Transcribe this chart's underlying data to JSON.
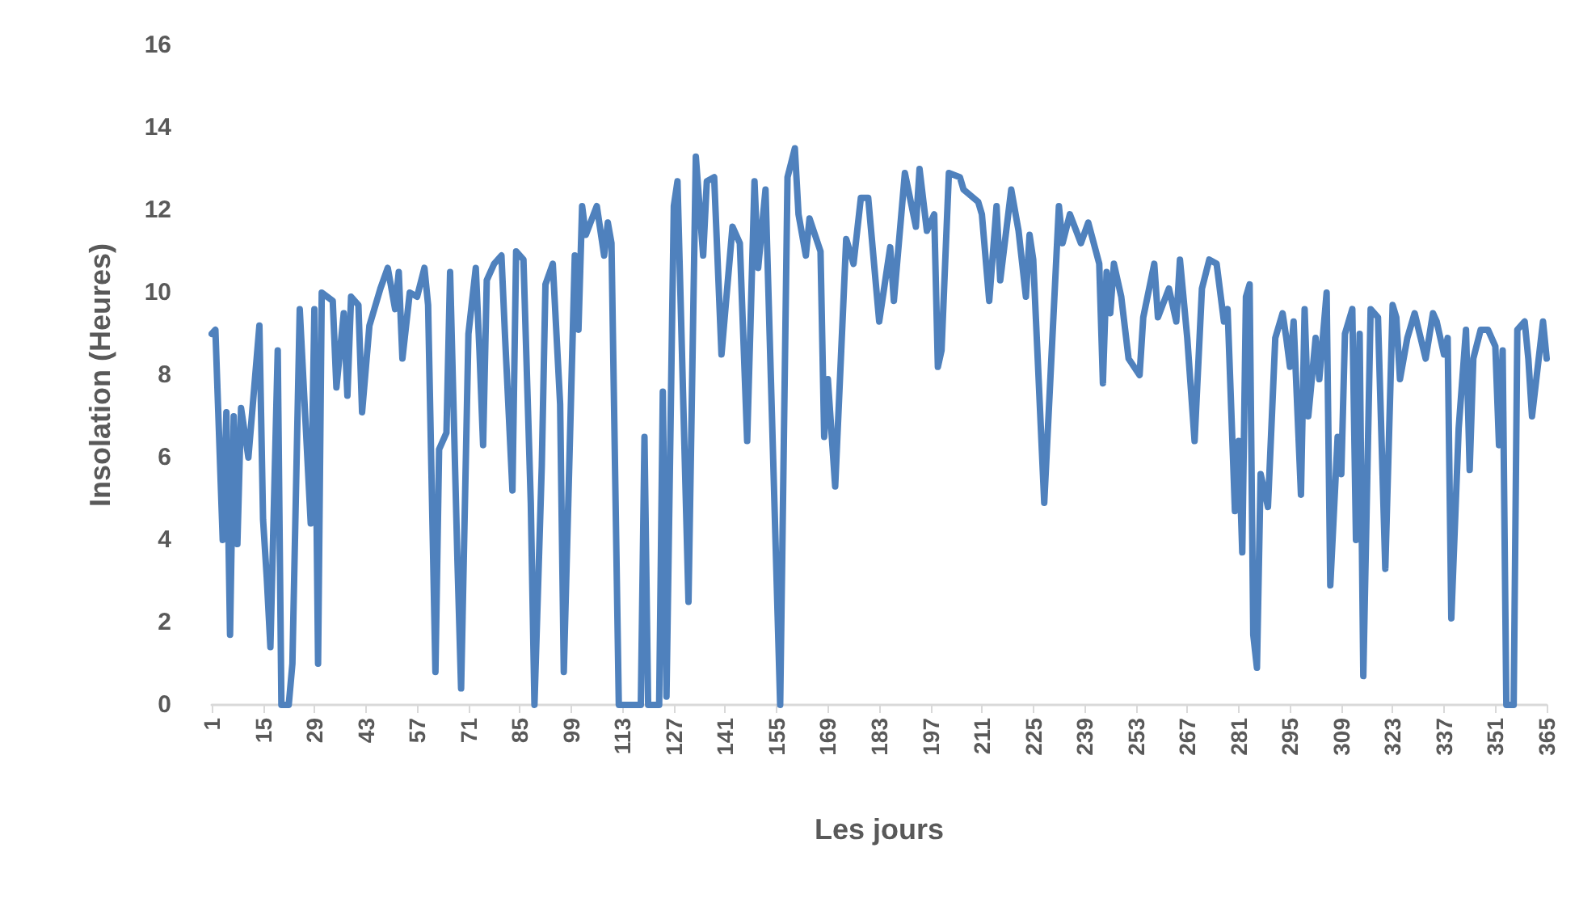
{
  "chart_data": {
    "type": "line",
    "xlabel": "Les jours",
    "ylabel": "Insolation (Heures)",
    "xlim": [
      1,
      365
    ],
    "xticks": [
      1,
      15,
      29,
      43,
      57,
      71,
      85,
      99,
      113,
      127,
      141,
      155,
      169,
      183,
      197,
      211,
      225,
      239,
      253,
      267,
      281,
      295,
      309,
      323,
      337,
      351,
      365
    ],
    "ylim": [
      0,
      16
    ],
    "yticks": [
      0,
      2,
      4,
      6,
      8,
      10,
      12,
      14,
      16
    ],
    "grid": false,
    "marker": "none",
    "series": [
      {
        "color": "#4f81bd",
        "x": [
          1,
          2,
          4,
          5,
          6,
          7,
          8,
          9,
          11,
          14,
          15,
          16,
          17,
          19,
          20,
          22,
          23,
          25,
          28,
          29,
          30,
          31,
          34,
          35,
          37,
          38,
          39,
          41,
          42,
          44,
          47,
          49,
          51,
          52,
          53,
          55,
          57,
          59,
          60,
          62,
          63,
          65,
          66,
          68,
          69,
          71,
          73,
          74,
          75,
          76,
          78,
          80,
          81,
          83,
          84,
          86,
          88,
          89,
          91,
          92,
          94,
          96,
          97,
          100,
          101,
          102,
          103,
          106,
          108,
          109,
          110,
          112,
          118,
          119,
          120,
          123,
          124,
          125,
          127,
          128,
          131,
          133,
          135,
          136,
          138,
          140,
          143,
          145,
          147,
          149,
          150,
          152,
          156,
          158,
          160,
          161,
          163,
          164,
          167,
          168,
          169,
          171,
          174,
          176,
          178,
          180,
          183,
          186,
          187,
          190,
          193,
          194,
          196,
          198,
          199,
          200,
          202,
          205,
          206,
          210,
          211,
          213,
          215,
          216,
          219,
          221,
          223,
          224,
          225,
          228,
          232,
          233,
          235,
          238,
          240,
          243,
          244,
          245,
          246,
          247,
          249,
          251,
          254,
          255,
          258,
          259,
          262,
          264,
          265,
          267,
          269,
          271,
          273,
          275,
          277,
          278,
          280,
          281,
          282,
          283,
          284,
          285,
          286,
          287,
          289,
          291,
          293,
          294,
          295,
          296,
          298,
          299,
          300,
          302,
          303,
          305,
          306,
          308,
          309,
          310,
          312,
          313,
          314,
          315,
          317,
          319,
          321,
          323,
          324,
          325,
          327,
          329,
          332,
          334,
          335,
          337,
          338,
          339,
          341,
          343,
          344,
          345,
          347,
          349,
          351,
          352,
          353,
          354,
          356,
          357,
          359,
          360,
          361,
          364,
          365
        ],
        "values": [
          9.0,
          9.1,
          4.0,
          7.1,
          1.7,
          7.0,
          3.9,
          7.2,
          6.0,
          9.2,
          4.5,
          3.1,
          1.4,
          8.6,
          0,
          0,
          1.0,
          9.6,
          4.4,
          9.6,
          1.0,
          10.0,
          9.8,
          7.7,
          9.5,
          7.5,
          9.9,
          9.7,
          7.1,
          9.2,
          10.1,
          10.6,
          9.6,
          10.5,
          8.4,
          10.0,
          9.9,
          10.6,
          9.7,
          0.8,
          6.2,
          6.6,
          10.5,
          3.5,
          0.4,
          9.0,
          10.6,
          8.6,
          6.3,
          10.3,
          10.7,
          10.9,
          8.9,
          5.2,
          11.0,
          10.8,
          4.9,
          0,
          5.8,
          10.2,
          10.7,
          7.3,
          0.8,
          10.9,
          9.1,
          12.1,
          11.4,
          12.1,
          10.9,
          11.7,
          11.2,
          0,
          0,
          6.5,
          0,
          0,
          7.6,
          0.2,
          12.1,
          12.7,
          2.5,
          13.3,
          10.9,
          12.7,
          12.8,
          8.5,
          11.6,
          11.2,
          6.4,
          12.7,
          10.6,
          12.5,
          0,
          12.8,
          13.5,
          11.9,
          10.9,
          11.8,
          11.0,
          6.5,
          7.9,
          5.3,
          11.3,
          10.7,
          12.3,
          12.3,
          9.3,
          11.1,
          9.8,
          12.9,
          11.6,
          13.0,
          11.5,
          11.9,
          8.2,
          8.6,
          12.9,
          12.8,
          12.5,
          12.2,
          11.9,
          9.8,
          12.1,
          10.3,
          12.5,
          11.5,
          9.9,
          11.4,
          10.8,
          4.9,
          12.1,
          11.2,
          11.9,
          11.2,
          11.7,
          10.7,
          7.8,
          10.5,
          9.5,
          10.7,
          9.9,
          8.4,
          8.0,
          9.4,
          10.7,
          9.4,
          10.1,
          9.3,
          10.8,
          8.9,
          6.4,
          10.1,
          10.8,
          10.7,
          9.3,
          9.6,
          4.7,
          6.4,
          3.7,
          9.9,
          10.2,
          1.7,
          0.9,
          5.6,
          4.8,
          8.9,
          9.5,
          8.9,
          8.2,
          9.3,
          5.1,
          9.6,
          7.0,
          8.9,
          7.9,
          10.0,
          2.9,
          6.5,
          5.6,
          9.0,
          9.6,
          4.0,
          9.0,
          0.7,
          9.6,
          9.4,
          3.3,
          9.7,
          9.4,
          7.9,
          8.9,
          9.5,
          8.4,
          9.5,
          9.3,
          8.5,
          8.9,
          2.1,
          6.7,
          9.1,
          5.7,
          8.4,
          9.1,
          9.1,
          8.7,
          6.3,
          8.6,
          0,
          0,
          9.1,
          9.3,
          8.4,
          7.0,
          9.3,
          8.4
        ]
      }
    ]
  }
}
